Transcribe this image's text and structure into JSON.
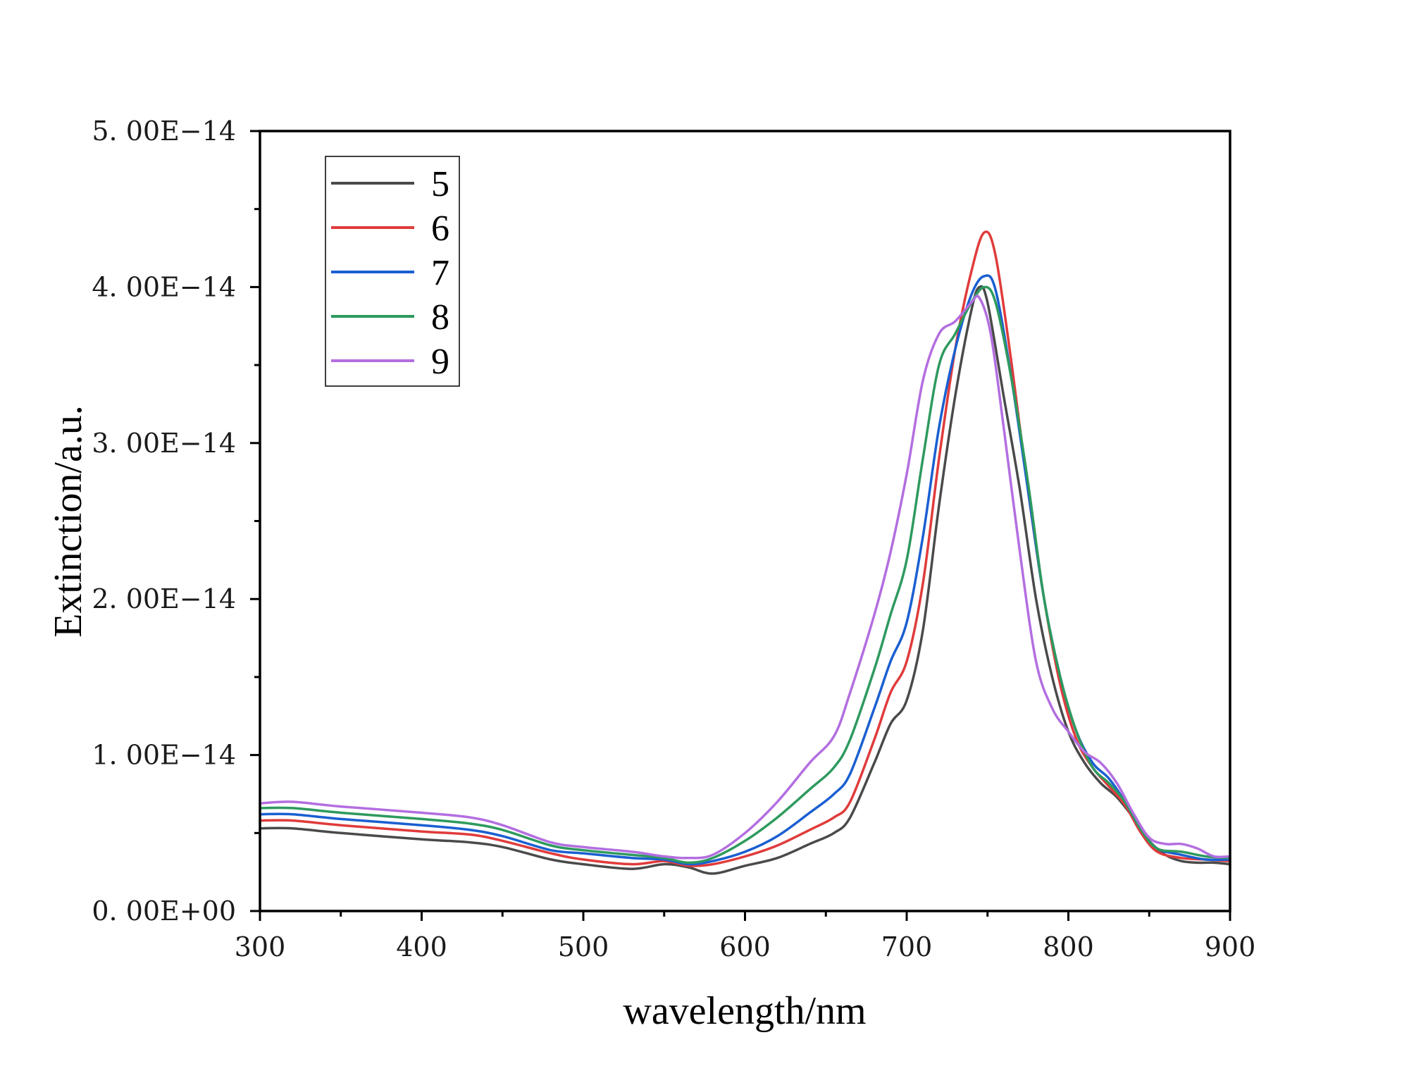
{
  "chart_data": {
    "type": "line",
    "xlabel": "wavelength/nm",
    "ylabel": "Extinction/a.u.",
    "xlim": [
      300,
      900
    ],
    "ylim": [
      0,
      5e-14
    ],
    "x_ticks": [
      300,
      400,
      500,
      600,
      700,
      800,
      900
    ],
    "x_tick_labels": [
      "300",
      "400",
      "500",
      "600",
      "700",
      "800",
      "900"
    ],
    "y_ticks": [
      0,
      1e-14,
      2e-14,
      3e-14,
      4e-14,
      5e-14
    ],
    "y_tick_labels": [
      "0. 00E+00",
      "1. 00E−14",
      "2. 00E−14",
      "3. 00E−14",
      "4. 00E−14",
      "5. 00E−14"
    ],
    "grid": false,
    "legend_position": "top-left",
    "series": [
      {
        "name": "5",
        "color": "#4a4a4a",
        "points": [
          [
            300,
            0.53
          ],
          [
            320,
            0.53
          ],
          [
            350,
            0.5
          ],
          [
            400,
            0.46
          ],
          [
            430,
            0.44
          ],
          [
            450,
            0.41
          ],
          [
            480,
            0.33
          ],
          [
            500,
            0.3
          ],
          [
            530,
            0.27
          ],
          [
            550,
            0.3
          ],
          [
            565,
            0.28
          ],
          [
            580,
            0.24
          ],
          [
            600,
            0.29
          ],
          [
            620,
            0.34
          ],
          [
            640,
            0.43
          ],
          [
            655,
            0.5
          ],
          [
            665,
            0.6
          ],
          [
            680,
            0.95
          ],
          [
            690,
            1.2
          ],
          [
            700,
            1.35
          ],
          [
            710,
            1.8
          ],
          [
            720,
            2.6
          ],
          [
            730,
            3.3
          ],
          [
            740,
            3.85
          ],
          [
            745,
            4.0
          ],
          [
            750,
            3.9
          ],
          [
            760,
            3.3
          ],
          [
            770,
            2.7
          ],
          [
            780,
            2.0
          ],
          [
            790,
            1.5
          ],
          [
            800,
            1.15
          ],
          [
            810,
            0.95
          ],
          [
            820,
            0.82
          ],
          [
            830,
            0.73
          ],
          [
            840,
            0.6
          ],
          [
            850,
            0.45
          ],
          [
            860,
            0.36
          ],
          [
            870,
            0.32
          ],
          [
            880,
            0.31
          ],
          [
            890,
            0.31
          ],
          [
            900,
            0.3
          ]
        ]
      },
      {
        "name": "6",
        "color": "#e03b3b",
        "points": [
          [
            300,
            0.58
          ],
          [
            320,
            0.58
          ],
          [
            350,
            0.55
          ],
          [
            400,
            0.51
          ],
          [
            430,
            0.49
          ],
          [
            450,
            0.45
          ],
          [
            480,
            0.37
          ],
          [
            500,
            0.33
          ],
          [
            530,
            0.3
          ],
          [
            550,
            0.32
          ],
          [
            565,
            0.29
          ],
          [
            580,
            0.3
          ],
          [
            600,
            0.35
          ],
          [
            620,
            0.42
          ],
          [
            640,
            0.52
          ],
          [
            655,
            0.6
          ],
          [
            665,
            0.7
          ],
          [
            680,
            1.1
          ],
          [
            690,
            1.4
          ],
          [
            700,
            1.6
          ],
          [
            710,
            2.1
          ],
          [
            720,
            2.9
          ],
          [
            730,
            3.6
          ],
          [
            740,
            4.1
          ],
          [
            748,
            4.35
          ],
          [
            755,
            4.2
          ],
          [
            765,
            3.5
          ],
          [
            775,
            2.7
          ],
          [
            785,
            2.0
          ],
          [
            795,
            1.45
          ],
          [
            805,
            1.1
          ],
          [
            815,
            0.92
          ],
          [
            825,
            0.8
          ],
          [
            835,
            0.68
          ],
          [
            845,
            0.5
          ],
          [
            855,
            0.38
          ],
          [
            870,
            0.34
          ],
          [
            885,
            0.33
          ],
          [
            900,
            0.32
          ]
        ]
      },
      {
        "name": "7",
        "color": "#1a5fd1",
        "points": [
          [
            300,
            0.62
          ],
          [
            320,
            0.62
          ],
          [
            350,
            0.59
          ],
          [
            400,
            0.55
          ],
          [
            430,
            0.52
          ],
          [
            450,
            0.48
          ],
          [
            480,
            0.39
          ],
          [
            500,
            0.37
          ],
          [
            530,
            0.34
          ],
          [
            550,
            0.33
          ],
          [
            565,
            0.3
          ],
          [
            580,
            0.32
          ],
          [
            600,
            0.38
          ],
          [
            620,
            0.48
          ],
          [
            640,
            0.63
          ],
          [
            655,
            0.75
          ],
          [
            665,
            0.88
          ],
          [
            680,
            1.3
          ],
          [
            690,
            1.6
          ],
          [
            700,
            1.85
          ],
          [
            710,
            2.4
          ],
          [
            720,
            3.1
          ],
          [
            730,
            3.6
          ],
          [
            740,
            3.95
          ],
          [
            748,
            4.07
          ],
          [
            755,
            3.98
          ],
          [
            765,
            3.4
          ],
          [
            775,
            2.7
          ],
          [
            785,
            2.0
          ],
          [
            795,
            1.5
          ],
          [
            805,
            1.15
          ],
          [
            815,
            0.95
          ],
          [
            825,
            0.85
          ],
          [
            835,
            0.7
          ],
          [
            845,
            0.52
          ],
          [
            855,
            0.4
          ],
          [
            870,
            0.36
          ],
          [
            885,
            0.33
          ],
          [
            900,
            0.33
          ]
        ]
      },
      {
        "name": "8",
        "color": "#2e9a5e",
        "points": [
          [
            300,
            0.66
          ],
          [
            320,
            0.66
          ],
          [
            350,
            0.63
          ],
          [
            400,
            0.59
          ],
          [
            430,
            0.56
          ],
          [
            450,
            0.52
          ],
          [
            480,
            0.42
          ],
          [
            500,
            0.39
          ],
          [
            530,
            0.36
          ],
          [
            550,
            0.34
          ],
          [
            565,
            0.31
          ],
          [
            580,
            0.34
          ],
          [
            600,
            0.45
          ],
          [
            620,
            0.6
          ],
          [
            640,
            0.78
          ],
          [
            655,
            0.92
          ],
          [
            665,
            1.1
          ],
          [
            680,
            1.55
          ],
          [
            690,
            1.9
          ],
          [
            700,
            2.25
          ],
          [
            710,
            2.9
          ],
          [
            720,
            3.5
          ],
          [
            730,
            3.7
          ],
          [
            740,
            3.9
          ],
          [
            748,
            4.0
          ],
          [
            755,
            3.9
          ],
          [
            765,
            3.4
          ],
          [
            775,
            2.75
          ],
          [
            785,
            2.0
          ],
          [
            795,
            1.5
          ],
          [
            805,
            1.15
          ],
          [
            815,
            0.92
          ],
          [
            825,
            0.82
          ],
          [
            835,
            0.7
          ],
          [
            845,
            0.52
          ],
          [
            855,
            0.4
          ],
          [
            870,
            0.38
          ],
          [
            885,
            0.35
          ],
          [
            900,
            0.34
          ]
        ]
      },
      {
        "name": "9",
        "color": "#b36ee0",
        "points": [
          [
            300,
            0.69
          ],
          [
            320,
            0.7
          ],
          [
            350,
            0.67
          ],
          [
            400,
            0.63
          ],
          [
            430,
            0.6
          ],
          [
            450,
            0.55
          ],
          [
            480,
            0.44
          ],
          [
            500,
            0.41
          ],
          [
            530,
            0.38
          ],
          [
            550,
            0.35
          ],
          [
            565,
            0.34
          ],
          [
            580,
            0.36
          ],
          [
            600,
            0.5
          ],
          [
            620,
            0.7
          ],
          [
            640,
            0.95
          ],
          [
            655,
            1.12
          ],
          [
            665,
            1.4
          ],
          [
            680,
            1.9
          ],
          [
            690,
            2.3
          ],
          [
            700,
            2.8
          ],
          [
            710,
            3.4
          ],
          [
            720,
            3.7
          ],
          [
            730,
            3.78
          ],
          [
            740,
            3.9
          ],
          [
            745,
            3.93
          ],
          [
            752,
            3.7
          ],
          [
            760,
            3.1
          ],
          [
            770,
            2.3
          ],
          [
            780,
            1.6
          ],
          [
            790,
            1.3
          ],
          [
            800,
            1.15
          ],
          [
            810,
            1.02
          ],
          [
            820,
            0.95
          ],
          [
            830,
            0.82
          ],
          [
            840,
            0.63
          ],
          [
            850,
            0.47
          ],
          [
            860,
            0.43
          ],
          [
            870,
            0.43
          ],
          [
            880,
            0.4
          ],
          [
            890,
            0.35
          ],
          [
            900,
            0.35
          ]
        ]
      }
    ]
  }
}
